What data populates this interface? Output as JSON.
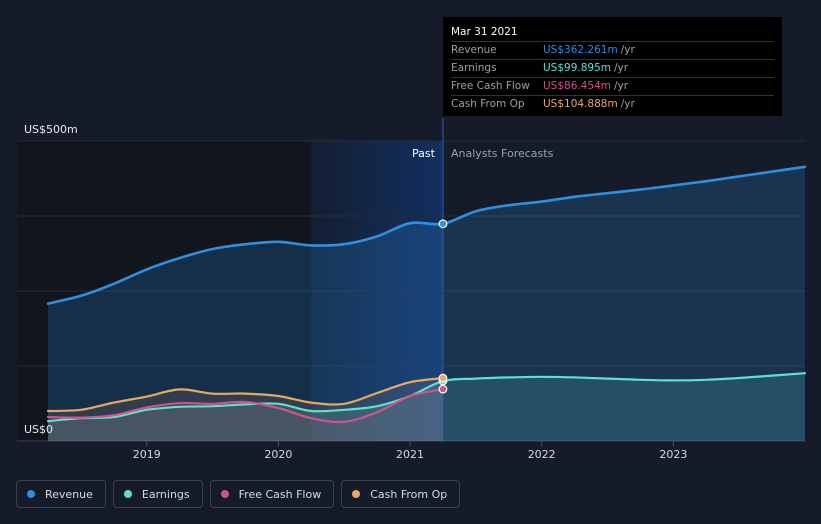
{
  "tooltip": {
    "date": "Mar 31 2021",
    "rows": [
      {
        "name": "Revenue",
        "value": "US$362.261m",
        "unit": "/yr",
        "color": "#2f8fe0"
      },
      {
        "name": "Earnings",
        "value": "US$99.895m",
        "unit": "/yr",
        "color": "#5fe0cd"
      },
      {
        "name": "Free Cash Flow",
        "value": "US$86.454m",
        "unit": "/yr",
        "color": "#d0538a"
      },
      {
        "name": "Cash From Op",
        "value": "US$104.888m",
        "unit": "/yr",
        "color": "#e6a867"
      }
    ]
  },
  "legend": [
    {
      "label": "Revenue",
      "color": "#2f8fe0"
    },
    {
      "label": "Earnings",
      "color": "#5fe0cd"
    },
    {
      "label": "Free Cash Flow",
      "color": "#d0538a"
    },
    {
      "label": "Cash From Op",
      "color": "#e6a867"
    }
  ],
  "chart_data": {
    "type": "line",
    "y_axis_labels": [
      "US$500m",
      "US$0"
    ],
    "x_tick_labels": [
      "2019",
      "2020",
      "2021",
      "2022",
      "2023"
    ],
    "period_labels": {
      "past": "Past",
      "forecast": "Analysts Forecasts"
    },
    "ylim": [
      0,
      500
    ],
    "xlim": [
      2018.25,
      2024
    ],
    "x_ticks": [
      2019,
      2020,
      2021,
      2022,
      2023
    ],
    "gridlines": [
      0,
      125,
      250,
      375,
      500
    ],
    "past_end": 2021.25,
    "shaded_start": 2020.25,
    "series": [
      {
        "name": "Revenue",
        "color": "#2f8fe0",
        "x": [
          2018.25,
          2018.5,
          2018.75,
          2019.0,
          2019.25,
          2019.5,
          2019.75,
          2020.0,
          2020.25,
          2020.5,
          2020.75,
          2021.0,
          2021.25,
          2021.5,
          2021.75,
          2022.0,
          2022.25,
          2022.5,
          2022.75,
          2023.0,
          2023.25,
          2023.5,
          2023.75,
          2024.0
        ],
        "values": [
          229,
          242,
          262,
          286,
          305,
          320,
          328,
          332,
          326,
          328,
          341,
          363,
          362,
          383,
          393,
          399,
          407,
          413,
          419,
          426,
          433,
          441,
          449,
          457
        ]
      },
      {
        "name": "Earnings",
        "color": "#5fe0cd",
        "x": [
          2018.25,
          2018.5,
          2018.75,
          2019.0,
          2019.25,
          2019.5,
          2019.75,
          2020.0,
          2020.25,
          2020.5,
          2020.75,
          2021.0,
          2021.25,
          2021.5,
          2021.75,
          2022.0,
          2022.25,
          2022.5,
          2022.75,
          2023.0,
          2023.25,
          2023.5,
          2023.75,
          2024.0
        ],
        "values": [
          33,
          38,
          40,
          52,
          57,
          58,
          61,
          62,
          50,
          52,
          58,
          75,
          99.9,
          104,
          106,
          107,
          106,
          104,
          102,
          101,
          102,
          105,
          109,
          113
        ]
      },
      {
        "name": "Free Cash Flow",
        "color": "#d0538a",
        "x": [
          2018.25,
          2018.5,
          2018.75,
          2019.0,
          2019.25,
          2019.5,
          2019.75,
          2020.0,
          2020.25,
          2020.5,
          2020.75,
          2021.0,
          2021.25
        ],
        "values": [
          40,
          39,
          43,
          56,
          63,
          62,
          65,
          55,
          38,
          32,
          48,
          75,
          86.5
        ]
      },
      {
        "name": "Cash From Op",
        "color": "#e6a867",
        "x": [
          2018.25,
          2018.5,
          2018.75,
          2019.0,
          2019.25,
          2019.5,
          2019.75,
          2020.0,
          2020.25,
          2020.5,
          2020.75,
          2021.0,
          2021.25
        ],
        "values": [
          50,
          52,
          64,
          74,
          86,
          79,
          79,
          75,
          64,
          62,
          80,
          98,
          104.9
        ]
      }
    ]
  }
}
